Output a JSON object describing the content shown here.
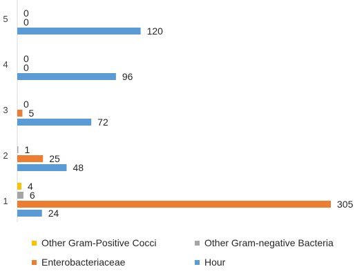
{
  "chart_data": {
    "type": "bar",
    "orientation": "horizontal",
    "categories": [
      "1",
      "2",
      "3",
      "4",
      "5"
    ],
    "series": [
      {
        "name": "Other Gram-Positive Cocci",
        "color": "#FFC000",
        "values": [
          4,
          null,
          null,
          null,
          null
        ]
      },
      {
        "name": "Other Gram-negative Bacteria",
        "color": "#A5A5A5",
        "values": [
          6,
          1,
          0,
          0,
          0
        ]
      },
      {
        "name": "Enterobacteriaceae",
        "color": "#ED7D31",
        "values": [
          305,
          25,
          5,
          0,
          0
        ]
      },
      {
        "name": "Hour",
        "color": "#5B9BD5",
        "values": [
          24,
          48,
          72,
          96,
          120
        ]
      }
    ],
    "xlim": [
      0,
      305
    ],
    "grid": false,
    "legend_position": "bottom",
    "data_labels": true
  }
}
